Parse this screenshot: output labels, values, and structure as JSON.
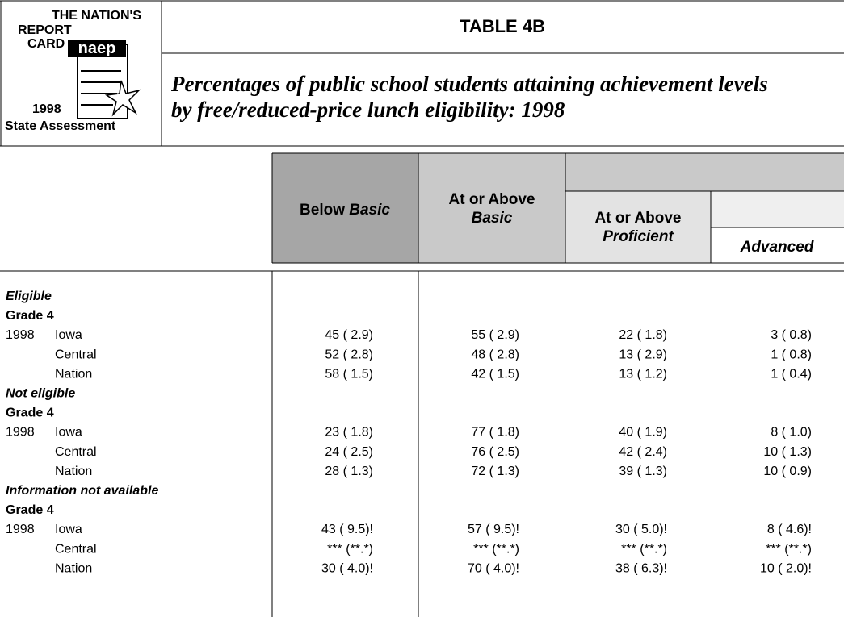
{
  "logo": {
    "line1": "THE NATION'S",
    "line2": "REPORT",
    "line3": "CARD",
    "mark": "naep",
    "year": "1998",
    "caption": "State Assessment"
  },
  "header": {
    "title": "TABLE 4B",
    "subtitle_line1": "Percentages of public school students attaining achievement levels",
    "subtitle_line2": "by free/reduced-price lunch eligibility: 1998"
  },
  "columns": {
    "below_basic": {
      "text": "Below ",
      "em": "Basic"
    },
    "basic": {
      "text": "At or Above",
      "em": "Basic"
    },
    "proficient": {
      "text": "At or Above",
      "em": "Proficient"
    },
    "advanced": {
      "em": "Advanced"
    }
  },
  "groups": [
    {
      "label": "Eligible",
      "grade": "Grade 4",
      "rows": [
        {
          "year": "1998",
          "jurisdiction": "Iowa",
          "cells": [
            "45 ( 2.9)",
            "55 ( 2.9)",
            "22 ( 1.8)",
            "3 ( 0.8)"
          ]
        },
        {
          "jurisdiction": "Central",
          "cells": [
            "52 ( 2.8)",
            "48 ( 2.8)",
            "13 ( 2.9)",
            "1 ( 0.8)"
          ]
        },
        {
          "jurisdiction": "Nation",
          "cells": [
            "58 ( 1.5)",
            "42 ( 1.5)",
            "13 ( 1.2)",
            "1 ( 0.4)"
          ]
        }
      ]
    },
    {
      "label": "Not eligible",
      "grade": "Grade 4",
      "rows": [
        {
          "year": "1998",
          "jurisdiction": "Iowa",
          "cells": [
            "23 ( 1.8)",
            "77 ( 1.8)",
            "40 ( 1.9)",
            "8 ( 1.0)"
          ]
        },
        {
          "jurisdiction": "Central",
          "cells": [
            "24 ( 2.5)",
            "76 ( 2.5)",
            "42 ( 2.4)",
            "10 ( 1.3)"
          ]
        },
        {
          "jurisdiction": "Nation",
          "cells": [
            "28 ( 1.3)",
            "72 ( 1.3)",
            "39 ( 1.3)",
            "10 ( 0.9)"
          ]
        }
      ]
    },
    {
      "label": "Information not available",
      "grade": "Grade 4",
      "rows": [
        {
          "year": "1998",
          "jurisdiction": "Iowa",
          "cells": [
            "43 ( 9.5)!",
            "57 ( 9.5)!",
            "30 ( 5.0)!",
            "8 ( 4.6)!"
          ]
        },
        {
          "jurisdiction": "Central",
          "cells": [
            "*** (**.*)",
            "*** (**.*)",
            "*** (**.*)",
            "*** (**.*)"
          ]
        },
        {
          "jurisdiction": "Nation",
          "cells": [
            "30 ( 4.0)!",
            "70 ( 4.0)!",
            "38 ( 6.3)!",
            "10 ( 2.0)!"
          ]
        }
      ]
    }
  ]
}
